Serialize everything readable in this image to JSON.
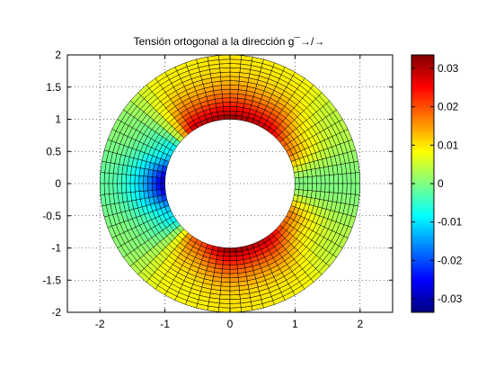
{
  "chart_data": {
    "type": "heatmap",
    "title": "Tensión ortogonal a la dirección g¯→/→",
    "xlabel": "",
    "ylabel": "",
    "xlim": [
      -2.5,
      2.5
    ],
    "ylim": [
      -2,
      2
    ],
    "x_ticks": [
      "-2",
      "-1",
      "0",
      "1",
      "2"
    ],
    "y_ticks": [
      "2",
      "1.5",
      "1",
      "0.5",
      "0",
      "-0.5",
      "-1",
      "-1.5",
      "-2"
    ],
    "grid": "dotted",
    "mesh": {
      "shape": "annulus",
      "center": [
        0,
        0
      ],
      "inner_radius": 1,
      "outer_radius": 2,
      "radial_divisions": 15,
      "angular_divisions": 72
    },
    "field": {
      "description_of_values": "stress value by polar angle (degrees, 0 = +x axis) and radius",
      "angle_deg": [
        0,
        30,
        60,
        90,
        120,
        150,
        180,
        210,
        240,
        270,
        300,
        330
      ],
      "value_at_inner_radius": [
        0,
        0.018,
        0.03,
        0.033,
        0.03,
        -0.01,
        -0.03,
        -0.01,
        0.02,
        0.033,
        0.03,
        0.018
      ],
      "value_at_outer_radius": [
        0,
        0.004,
        0.009,
        0.01,
        0.009,
        0.001,
        -0.002,
        0.001,
        0.008,
        0.01,
        0.009,
        0.004
      ]
    },
    "colorbar": {
      "colormap": "jet",
      "clim": [
        -0.0335,
        0.0335
      ],
      "ticks": [
        "0.03",
        "0.02",
        "0.01",
        "0",
        "-0.01",
        "-0.02",
        "-0.03"
      ],
      "tick_values": [
        0.03,
        0.02,
        0.01,
        0,
        -0.01,
        -0.02,
        -0.03
      ]
    }
  }
}
